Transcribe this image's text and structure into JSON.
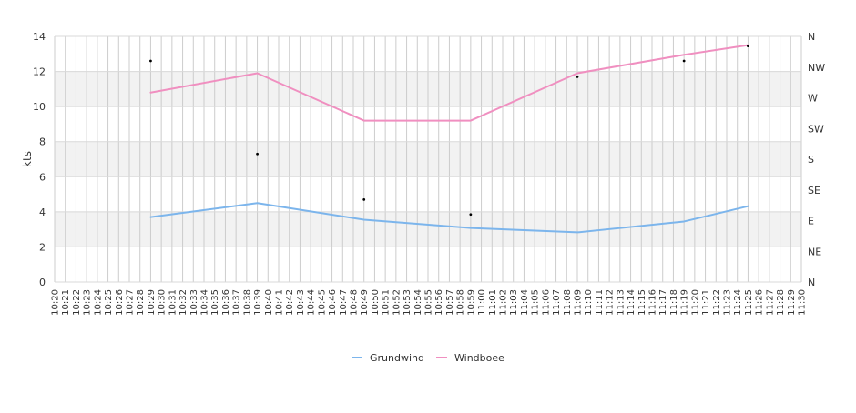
{
  "chart_data": {
    "type": "line",
    "title": "",
    "xlabel": "",
    "ylabel": "kts",
    "ylim": [
      0,
      14
    ],
    "y_ticks": [
      0,
      2,
      4,
      6,
      8,
      10,
      12,
      14
    ],
    "y2_labels": [
      "N",
      "NE",
      "E",
      "SE",
      "S",
      "SW",
      "W",
      "NW",
      "N"
    ],
    "x_ticks": [
      "10:20",
      "10:21",
      "10:22",
      "10:23",
      "10:24",
      "10:25",
      "10:26",
      "10:27",
      "10:28",
      "10:29",
      "10:30",
      "10:31",
      "10:32",
      "10:33",
      "10:34",
      "10:35",
      "10:36",
      "10:37",
      "10:38",
      "10:39",
      "10:40",
      "10:41",
      "10:42",
      "10:43",
      "10:44",
      "10:45",
      "10:46",
      "10:47",
      "10:48",
      "10:49",
      "10:50",
      "10:51",
      "10:52",
      "10:53",
      "10:54",
      "10:55",
      "10:56",
      "10:57",
      "10:58",
      "10:59",
      "11:00",
      "11:01",
      "11:02",
      "11:03",
      "11:04",
      "11:05",
      "11:06",
      "11:07",
      "11:08",
      "11:09",
      "11:10",
      "11:11",
      "11:12",
      "11:13",
      "11:14",
      "11:15",
      "11:16",
      "11:17",
      "11:18",
      "11:19",
      "11:20",
      "11:21",
      "11:22",
      "11:23",
      "11:24",
      "11:25",
      "11:26",
      "11:27",
      "11:28",
      "11:29",
      "11:30"
    ],
    "grid": true,
    "banded_background": true,
    "legend_position": "bottom",
    "series": [
      {
        "name": "Grundwind",
        "color": "#7cb5ec",
        "points": [
          [
            "10:29",
            3.7
          ],
          [
            "10:39",
            4.5
          ],
          [
            "10:49",
            3.55
          ],
          [
            "10:59",
            3.08
          ],
          [
            "11:09",
            2.83
          ],
          [
            "11:19",
            3.45
          ],
          [
            "11:25",
            4.32
          ]
        ]
      },
      {
        "name": "Windboee",
        "color": "#f08fc0",
        "points": [
          [
            "10:29",
            10.8
          ],
          [
            "10:39",
            11.9
          ],
          [
            "10:49",
            9.2
          ],
          [
            "10:59",
            9.2
          ],
          [
            "11:09",
            11.9
          ],
          [
            "11:19",
            12.95
          ],
          [
            "11:25",
            13.5
          ]
        ]
      }
    ],
    "direction_markers": {
      "color": "#000000",
      "points": [
        [
          "10:29",
          12.6
        ],
        [
          "10:39",
          7.3
        ],
        [
          "10:49",
          4.7
        ],
        [
          "10:59",
          3.85
        ],
        [
          "11:09",
          11.7
        ],
        [
          "11:19",
          12.6
        ],
        [
          "11:25",
          13.45
        ]
      ]
    }
  }
}
